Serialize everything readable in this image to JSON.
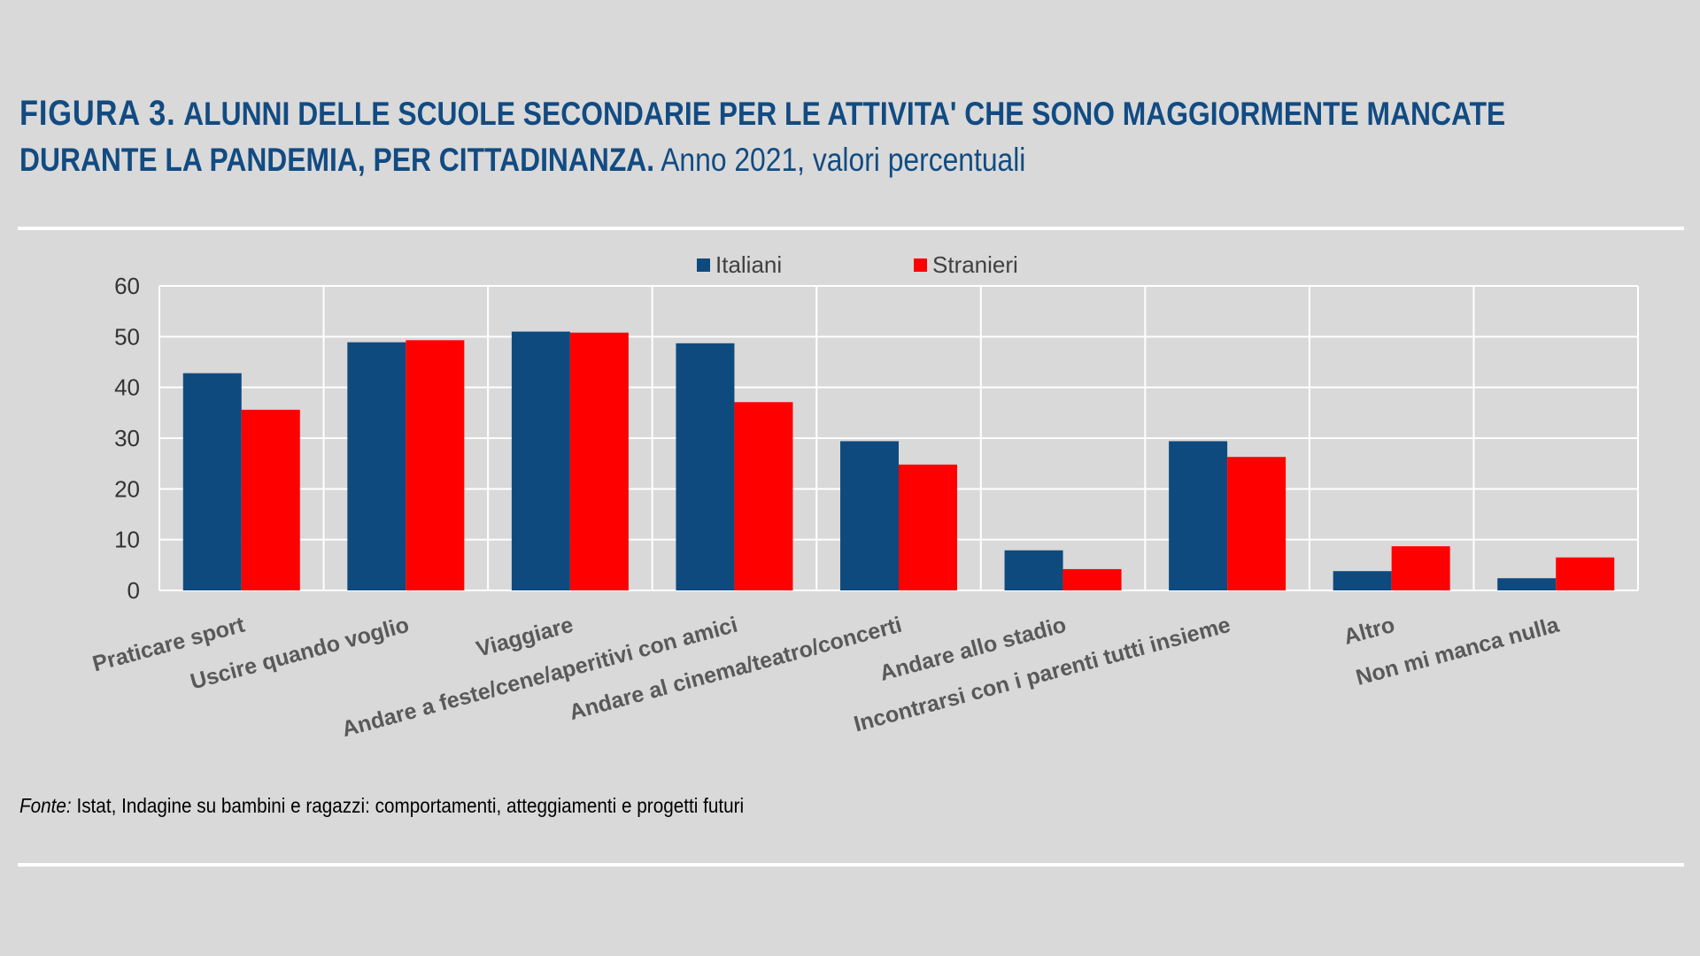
{
  "header": {
    "figure_label": "FIGURA 3.",
    "title_line1": "ALUNNI DELLE SCUOLE SECONDARIE PER LE ATTIVITA' CHE SONO MAGGIORMENTE MANCATE",
    "title_line2": "DURANTE LA PANDEMIA, PER CITTADINANZA.",
    "subtitle": "Anno 2021, valori percentuali"
  },
  "source": {
    "label": "Fonte:",
    "text": "Istat, Indagine su bambini e ragazzi: comportamenti, atteggiamenti e progetti futuri"
  },
  "colors": {
    "background": "#d9d9d9",
    "title": "#124b82",
    "italiani": "#0f4a7f",
    "stranieri": "#ff0000",
    "grid": "#ffffff"
  },
  "chart_data": {
    "type": "bar",
    "categories": [
      "Praticare sport",
      "Uscire quando voglio",
      "Viaggiare",
      "Andare a feste/cene/aperitivi con amici",
      "Andare al cinema/teatro/concerti",
      "Andare allo stadio",
      "Incontrarsi con i parenti tutti insieme",
      "Altro",
      "Non mi manca nulla"
    ],
    "series": [
      {
        "name": "Italiani",
        "color": "#0f4a7f",
        "values": [
          42.8,
          48.9,
          51.0,
          48.7,
          29.4,
          7.9,
          29.4,
          3.8,
          2.4
        ]
      },
      {
        "name": "Stranieri",
        "color": "#ff0000",
        "values": [
          35.6,
          49.3,
          50.8,
          37.1,
          24.8,
          4.2,
          26.3,
          8.7,
          6.5
        ]
      }
    ],
    "ylim": [
      0,
      60
    ],
    "yticks": [
      0,
      10,
      20,
      30,
      40,
      50,
      60
    ],
    "grid": true,
    "legend": "top-center"
  }
}
